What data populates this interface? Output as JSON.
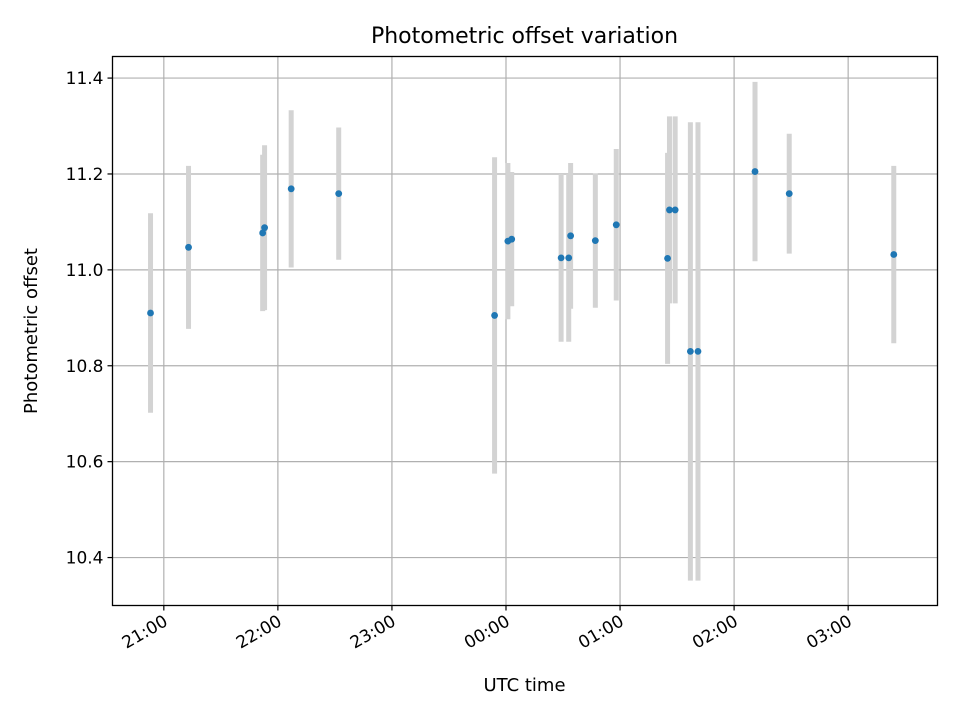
{
  "chart_data": {
    "type": "scatter",
    "title": "Photometric offset variation",
    "xlabel": "UTC time",
    "ylabel": "Photometric offset",
    "xlim": [
      "20:33",
      "03:47"
    ],
    "ylim": [
      10.3,
      11.445
    ],
    "x_ticks": [
      "21:00",
      "22:00",
      "23:00",
      "00:00",
      "01:00",
      "02:00",
      "03:00"
    ],
    "y_ticks": [
      "10.4",
      "10.6",
      "10.8",
      "11.0",
      "11.2",
      "11.4"
    ],
    "grid": true,
    "colors": {
      "point": "#1f77b4",
      "errorbar": "#d3d3d3",
      "grid": "#b0b0b0"
    },
    "points": [
      {
        "time": "20:53",
        "y": 10.91,
        "err": 0.208
      },
      {
        "time": "21:13",
        "y": 11.047,
        "err": 0.17
      },
      {
        "time": "21:52",
        "y": 11.077,
        "err": 0.163
      },
      {
        "time": "21:53",
        "y": 11.088,
        "err": 0.172
      },
      {
        "time": "22:07",
        "y": 11.169,
        "err": 0.164
      },
      {
        "time": "22:32",
        "y": 11.159,
        "err": 0.138
      },
      {
        "time": "23:54",
        "y": 10.905,
        "err": 0.33
      },
      {
        "time": "00:01",
        "y": 11.06,
        "err": 0.163
      },
      {
        "time": "00:03",
        "y": 11.064,
        "err": 0.14
      },
      {
        "time": "00:29",
        "y": 11.025,
        "err": 0.175
      },
      {
        "time": "00:33",
        "y": 11.025,
        "err": 0.175
      },
      {
        "time": "00:34",
        "y": 11.071,
        "err": 0.152
      },
      {
        "time": "00:47",
        "y": 11.061,
        "err": 0.14
      },
      {
        "time": "00:58",
        "y": 11.094,
        "err": 0.158
      },
      {
        "time": "01:25",
        "y": 11.024,
        "err": 0.22
      },
      {
        "time": "01:26",
        "y": 11.125,
        "err": 0.195
      },
      {
        "time": "01:29",
        "y": 11.125,
        "err": 0.195
      },
      {
        "time": "01:37",
        "y": 10.83,
        "err": 0.478
      },
      {
        "time": "01:41",
        "y": 10.83,
        "err": 0.478
      },
      {
        "time": "02:11",
        "y": 11.205,
        "err": 0.187
      },
      {
        "time": "02:29",
        "y": 11.159,
        "err": 0.125
      },
      {
        "time": "03:24",
        "y": 11.032,
        "err": 0.185
      }
    ]
  }
}
